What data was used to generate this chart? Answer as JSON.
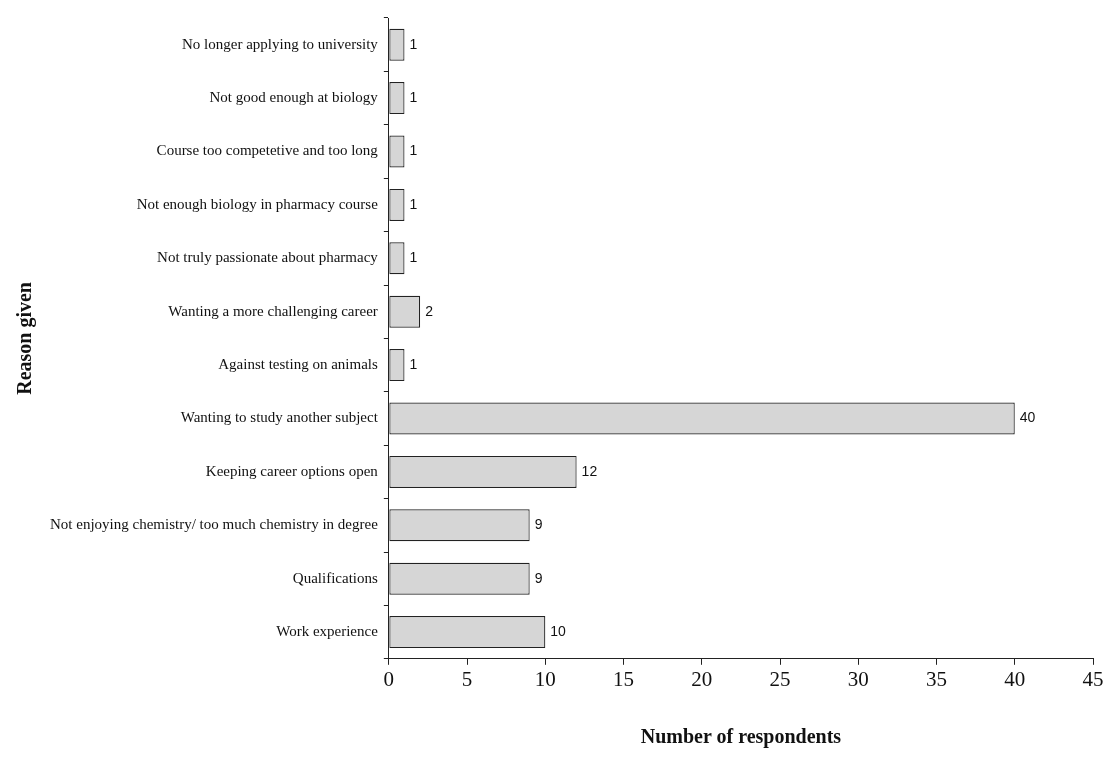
{
  "chart_data": {
    "type": "bar",
    "orientation": "horizontal",
    "categories": [
      "No longer applying to university",
      "Not good enough at biology",
      "Course too competetive and too long",
      "Not enough biology in pharmacy course",
      "Not truly passionate about pharmacy",
      "Wanting a more challenging career",
      "Against testing on animals",
      "Wanting to study another subject",
      "Keeping career options open",
      "Not enjoying chemistry/ too much chemistry in degree",
      "Qualifications",
      "Work experience"
    ],
    "values": [
      1,
      1,
      1,
      1,
      1,
      2,
      1,
      40,
      12,
      9,
      9,
      10
    ],
    "color": "#d6d6d6",
    "xlim": [
      0,
      45
    ],
    "xticks": [
      0,
      5,
      10,
      15,
      20,
      25,
      30,
      35,
      40,
      45
    ],
    "xlabel": "Number of respondents",
    "ylabel": "Reason given",
    "data_labels": true,
    "grid": false,
    "legend": false
  }
}
